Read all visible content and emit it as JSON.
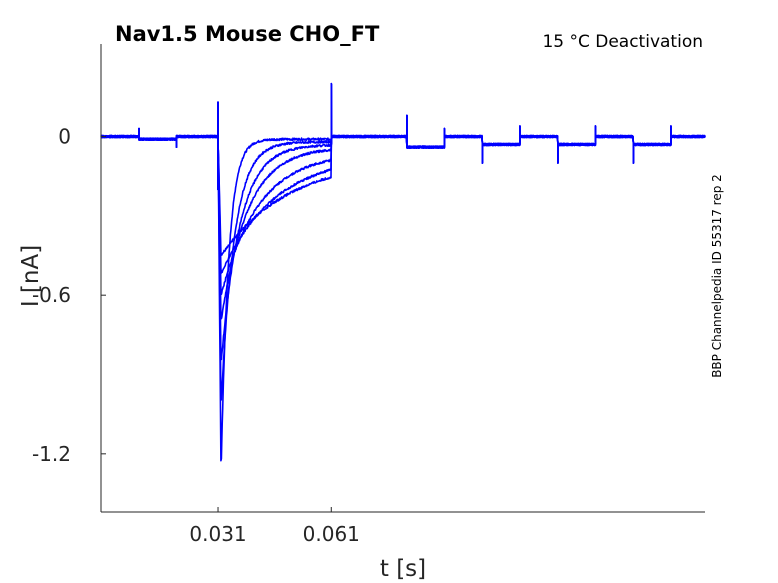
{
  "chart_data": {
    "type": "line",
    "title": "Nav1.5  Mouse  CHO_FT",
    "subtitle": "15 °C  Deactivation",
    "xlabel": "t [s]",
    "ylabel": "I [nA]",
    "side_label": "BBP Channelpedia ID 55317 rep 2",
    "x_ticks": [
      0.031,
      0.061
    ],
    "x_tick_labels": [
      "0.031",
      "0.061"
    ],
    "y_ticks": [
      0,
      -0.6,
      -1.2
    ],
    "y_tick_labels": [
      "0",
      "-0.6",
      "-1.2"
    ],
    "xlim": [
      0.0,
      0.16
    ],
    "ylim": [
      -1.42,
      0.35
    ],
    "grid": false,
    "series_color": "#0000ff",
    "pulse_start": 0.031,
    "pulse_end": 0.061,
    "series": [
      {
        "peak": -1.27,
        "tau": 0.002,
        "tail_level": -0.01
      },
      {
        "peak": -1.02,
        "tau": 0.0035,
        "tail_level": -0.02
      },
      {
        "peak": -0.86,
        "tau": 0.005,
        "tail_level": -0.03
      },
      {
        "peak": -0.7,
        "tau": 0.007,
        "tail_level": -0.04
      },
      {
        "peak": -0.6,
        "tau": 0.01,
        "tail_level": -0.06
      },
      {
        "peak": -0.52,
        "tau": 0.014,
        "tail_level": -0.07
      },
      {
        "peak": -0.45,
        "tau": 0.018,
        "tail_level": -0.08
      }
    ],
    "artifacts": [
      {
        "t": 0.01,
        "spike": 0.03,
        "step": -0.01
      },
      {
        "t": 0.02,
        "spike": -0.04,
        "step": 0.0
      },
      {
        "t": 0.081,
        "spike": 0.08,
        "step": -0.04
      },
      {
        "t": 0.091,
        "spike": 0.03,
        "step": 0.0
      },
      {
        "t": 0.101,
        "spike": -0.1,
        "step": -0.03
      },
      {
        "t": 0.111,
        "spike": 0.04,
        "step": 0.0
      },
      {
        "t": 0.121,
        "spike": -0.1,
        "step": -0.03
      },
      {
        "t": 0.131,
        "spike": 0.04,
        "step": 0.0
      },
      {
        "t": 0.141,
        "spike": -0.1,
        "step": -0.03
      },
      {
        "t": 0.151,
        "spike": 0.04,
        "step": 0.0
      }
    ]
  }
}
